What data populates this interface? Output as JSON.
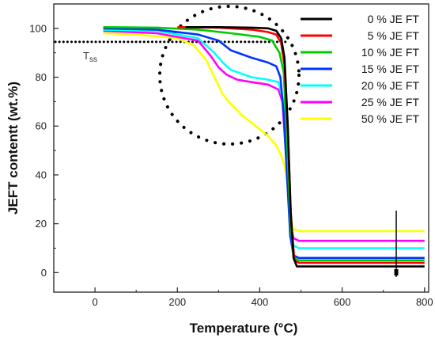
{
  "chart_data": {
    "type": "line",
    "title": "",
    "xlabel": "Temperature (°C)",
    "ylabel": "JEFT contentt (wt.%)",
    "xlim": [
      -100,
      810
    ],
    "ylim": [
      -8,
      110
    ],
    "x_ticks": [
      0,
      200,
      400,
      600,
      800
    ],
    "y_ticks": [
      0,
      20,
      40,
      60,
      80,
      100
    ],
    "grid": false,
    "legend_position": "top-right",
    "annotations": {
      "dotted_line_label": "T",
      "dotted_line_label_sub": "ss",
      "dotted_line_y": 94.5
    },
    "series": [
      {
        "name": "0 % JE FT",
        "color": "#000000",
        "points": [
          [
            220,
            100.5
          ],
          [
            300,
            100.5
          ],
          [
            380,
            100.3
          ],
          [
            420,
            100
          ],
          [
            440,
            99
          ],
          [
            452,
            96
          ],
          [
            460,
            88
          ],
          [
            468,
            60
          ],
          [
            475,
            25
          ],
          [
            482,
            6
          ],
          [
            490,
            2.5
          ],
          [
            600,
            2.5
          ],
          [
            800,
            2.5
          ]
        ]
      },
      {
        "name": "5 % JE FT",
        "color": "#ff0000",
        "points": [
          [
            200,
            100.5
          ],
          [
            300,
            100.3
          ],
          [
            380,
            99.5
          ],
          [
            420,
            98.5
          ],
          [
            440,
            97.5
          ],
          [
            452,
            94
          ],
          [
            460,
            85
          ],
          [
            468,
            58
          ],
          [
            476,
            22
          ],
          [
            484,
            5
          ],
          [
            495,
            4
          ],
          [
            600,
            4
          ],
          [
            800,
            4
          ]
        ]
      },
      {
        "name": "10 % JE FT",
        "color": "#00cc00",
        "points": [
          [
            20,
            100.5
          ],
          [
            150,
            100.3
          ],
          [
            250,
            99.5
          ],
          [
            330,
            98
          ],
          [
            400,
            96.5
          ],
          [
            430,
            95
          ],
          [
            448,
            90
          ],
          [
            458,
            82
          ],
          [
            466,
            55
          ],
          [
            474,
            22
          ],
          [
            482,
            6
          ],
          [
            495,
            5
          ],
          [
            600,
            5
          ],
          [
            800,
            5
          ]
        ]
      },
      {
        "name": "15 % JE FT",
        "color": "#0033ff",
        "points": [
          [
            20,
            100
          ],
          [
            150,
            99.5
          ],
          [
            250,
            97.5
          ],
          [
            300,
            95
          ],
          [
            330,
            91
          ],
          [
            380,
            88
          ],
          [
            420,
            86
          ],
          [
            440,
            84.5
          ],
          [
            450,
            80
          ],
          [
            458,
            65
          ],
          [
            466,
            40
          ],
          [
            474,
            15
          ],
          [
            482,
            7
          ],
          [
            495,
            6
          ],
          [
            600,
            6
          ],
          [
            800,
            6
          ]
        ]
      },
      {
        "name": "20 % JE FT",
        "color": "#00ffff",
        "points": [
          [
            20,
            99.5
          ],
          [
            150,
            99
          ],
          [
            250,
            96
          ],
          [
            290,
            90
          ],
          [
            310,
            86
          ],
          [
            330,
            83
          ],
          [
            380,
            80
          ],
          [
            420,
            79
          ],
          [
            445,
            78
          ],
          [
            458,
            70
          ],
          [
            466,
            45
          ],
          [
            474,
            20
          ],
          [
            482,
            11
          ],
          [
            495,
            10
          ],
          [
            600,
            10
          ],
          [
            800,
            10
          ]
        ]
      },
      {
        "name": "25 % JE FT",
        "color": "#ff00ff",
        "points": [
          [
            20,
            99
          ],
          [
            150,
            98
          ],
          [
            250,
            95
          ],
          [
            280,
            89
          ],
          [
            300,
            84
          ],
          [
            320,
            81
          ],
          [
            345,
            79
          ],
          [
            380,
            78
          ],
          [
            420,
            77
          ],
          [
            445,
            75
          ],
          [
            455,
            70
          ],
          [
            465,
            45
          ],
          [
            474,
            20
          ],
          [
            482,
            14
          ],
          [
            495,
            13
          ],
          [
            600,
            13
          ],
          [
            800,
            13
          ]
        ]
      },
      {
        "name": "50 % JE FT",
        "color": "#ffff00",
        "points": [
          [
            20,
            98
          ],
          [
            100,
            97.5
          ],
          [
            200,
            96
          ],
          [
            240,
            93
          ],
          [
            270,
            87
          ],
          [
            290,
            80
          ],
          [
            310,
            73
          ],
          [
            330,
            69
          ],
          [
            360,
            64
          ],
          [
            390,
            60
          ],
          [
            420,
            56
          ],
          [
            440,
            52
          ],
          [
            452,
            48
          ],
          [
            460,
            44
          ],
          [
            468,
            35
          ],
          [
            474,
            25
          ],
          [
            480,
            18
          ],
          [
            495,
            17
          ],
          [
            600,
            17
          ],
          [
            800,
            17
          ]
        ]
      }
    ]
  }
}
